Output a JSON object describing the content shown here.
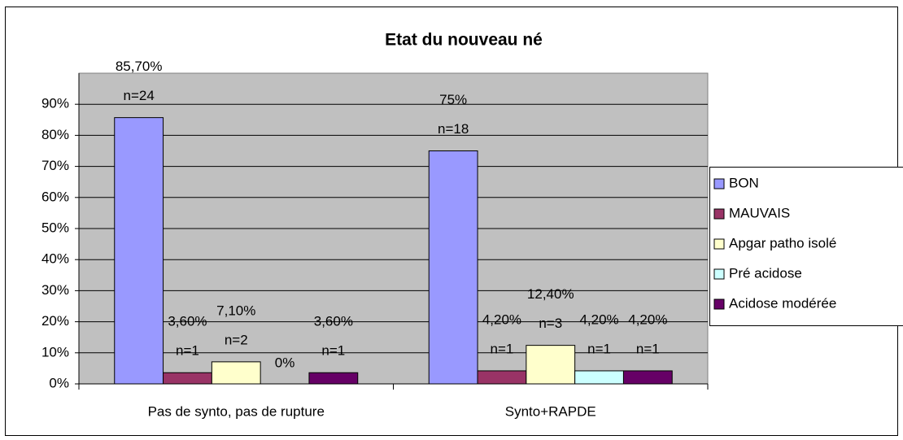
{
  "chart_data": {
    "type": "bar",
    "title": "Etat du nouveau né",
    "categories": [
      "Pas de synto, pas de rupture",
      "Synto+RAPDE"
    ],
    "series": [
      {
        "name": "BON",
        "color": "#9999ff",
        "values": [
          85.7,
          75
        ],
        "value_labels": [
          "85,70%",
          "75%"
        ],
        "count_labels": [
          "n=24",
          "n=18"
        ]
      },
      {
        "name": "MAUVAIS",
        "color": "#993366",
        "values": [
          3.6,
          4.2
        ],
        "value_labels": [
          "3,60%",
          "4,20%"
        ],
        "count_labels": [
          "n=1",
          "n=1"
        ]
      },
      {
        "name": "Apgar patho isolé",
        "color": "#ffffcc",
        "values": [
          7.1,
          12.4
        ],
        "value_labels": [
          "7,10%",
          "12,40%"
        ],
        "count_labels": [
          "n=2",
          "n=3"
        ]
      },
      {
        "name": "Pré acidose",
        "color": "#ccffff",
        "values": [
          0,
          4.2
        ],
        "value_labels": [
          "0%",
          "4,20%"
        ],
        "count_labels": [
          null,
          "n=1"
        ]
      },
      {
        "name": "Acidose modérée",
        "color": "#660066",
        "values": [
          3.6,
          4.2
        ],
        "value_labels": [
          "3,60%",
          "4,20%"
        ],
        "count_labels": [
          "n=1",
          "n=1"
        ]
      }
    ],
    "ylim": [
      0,
      100
    ],
    "yticks": [
      {
        "value": 0,
        "label": "0%"
      },
      {
        "value": 10,
        "label": "10%"
      },
      {
        "value": 20,
        "label": "20%"
      },
      {
        "value": 30,
        "label": "30%"
      },
      {
        "value": 40,
        "label": "40%"
      },
      {
        "value": 50,
        "label": "50%"
      },
      {
        "value": 60,
        "label": "60%"
      },
      {
        "value": 70,
        "label": "70%"
      },
      {
        "value": 80,
        "label": "80%"
      },
      {
        "value": 90,
        "label": "90%"
      }
    ],
    "grid": true,
    "legend": "right"
  }
}
